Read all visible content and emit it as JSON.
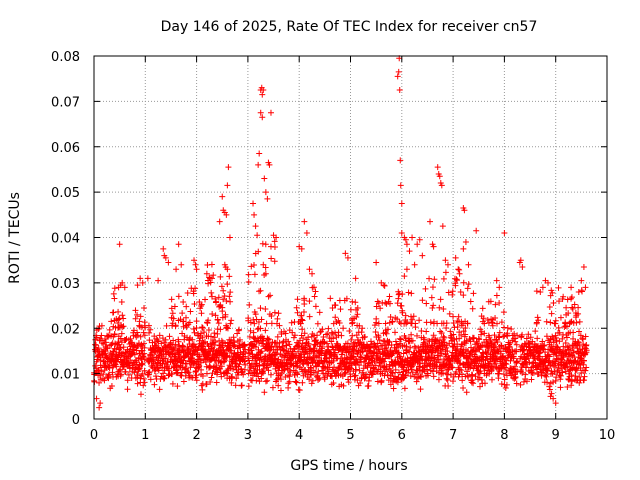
{
  "chart_data": {
    "type": "scatter",
    "title": "Day 146 of 2025, Rate Of TEC Index for receiver cn57",
    "xlabel": "GPS time / hours",
    "ylabel": "ROTI / TECUs",
    "xlim": [
      0,
      10
    ],
    "ylim": [
      0,
      0.08
    ],
    "xticks": [
      0,
      1,
      2,
      3,
      4,
      5,
      6,
      7,
      8,
      9,
      10
    ],
    "yticks": [
      0,
      0.01,
      0.02,
      0.03,
      0.04,
      0.05,
      0.06,
      0.07,
      0.08
    ],
    "xtick_labels": [
      "0",
      "1",
      "2",
      "3",
      "4",
      "5",
      "6",
      "7",
      "8",
      "9",
      "10"
    ],
    "ytick_labels": [
      "0",
      "0.01",
      "0.02",
      "0.03",
      "0.04",
      "0.05",
      "0.06",
      "0.07",
      "0.08"
    ],
    "grid": true,
    "marker": "plus",
    "series": [
      {
        "name": "ROTI",
        "color": "#ff0000",
        "background": {
          "x_start": 0.0,
          "x_end": 9.6,
          "step": 0.01,
          "band_low": 0.006,
          "band_high": 0.021,
          "per_step": 3,
          "gaps": [
            [
              1.0,
              1.05
            ],
            [
              2.95,
              3.0
            ],
            [
              8.25,
              8.3
            ]
          ]
        },
        "points": [
          [
            0.5,
            0.0385
          ],
          [
            0.48,
            0.029
          ],
          [
            0.52,
            0.0295
          ],
          [
            0.55,
            0.03
          ],
          [
            0.6,
            0.029
          ],
          [
            0.1,
            0.0025
          ],
          [
            0.12,
            0.0035
          ],
          [
            0.05,
            0.0045
          ],
          [
            0.85,
            0.0295
          ],
          [
            0.9,
            0.031
          ],
          [
            0.95,
            0.03
          ],
          [
            1.05,
            0.031
          ],
          [
            1.25,
            0.0305
          ],
          [
            1.35,
            0.0375
          ],
          [
            1.37,
            0.036
          ],
          [
            1.4,
            0.0355
          ],
          [
            1.45,
            0.0345
          ],
          [
            1.6,
            0.033
          ],
          [
            1.65,
            0.0385
          ],
          [
            1.7,
            0.034
          ],
          [
            1.95,
            0.035
          ],
          [
            1.98,
            0.034
          ],
          [
            2.0,
            0.033
          ],
          [
            2.2,
            0.032
          ],
          [
            2.3,
            0.031
          ],
          [
            2.45,
            0.0435
          ],
          [
            2.5,
            0.049
          ],
          [
            2.52,
            0.046
          ],
          [
            2.55,
            0.0455
          ],
          [
            2.58,
            0.045
          ],
          [
            2.6,
            0.0515
          ],
          [
            2.62,
            0.0555
          ],
          [
            2.65,
            0.04
          ],
          [
            2.55,
            0.034
          ],
          [
            2.6,
            0.033
          ],
          [
            3.1,
            0.0475
          ],
          [
            3.12,
            0.045
          ],
          [
            3.15,
            0.0425
          ],
          [
            3.18,
            0.0405
          ],
          [
            3.2,
            0.056
          ],
          [
            3.22,
            0.0585
          ],
          [
            3.25,
            0.0725
          ],
          [
            3.27,
            0.073
          ],
          [
            3.28,
            0.0715
          ],
          [
            3.3,
            0.0725
          ],
          [
            3.25,
            0.0675
          ],
          [
            3.28,
            0.0665
          ],
          [
            3.32,
            0.053
          ],
          [
            3.35,
            0.05
          ],
          [
            3.38,
            0.0485
          ],
          [
            3.4,
            0.0565
          ],
          [
            3.42,
            0.056
          ],
          [
            3.45,
            0.0675
          ],
          [
            3.3,
            0.034
          ],
          [
            3.35,
            0.032
          ],
          [
            3.5,
            0.0405
          ],
          [
            3.55,
            0.04
          ],
          [
            3.45,
            0.038
          ],
          [
            4.1,
            0.0435
          ],
          [
            4.15,
            0.041
          ],
          [
            4.2,
            0.033
          ],
          [
            4.25,
            0.032
          ],
          [
            4.0,
            0.038
          ],
          [
            4.05,
            0.0375
          ],
          [
            4.3,
            0.027
          ],
          [
            4.4,
            0.0235
          ],
          [
            4.9,
            0.0365
          ],
          [
            4.95,
            0.0355
          ],
          [
            5.1,
            0.031
          ],
          [
            5.5,
            0.0345
          ],
          [
            5.6,
            0.03
          ],
          [
            5.65,
            0.0295
          ],
          [
            5.95,
            0.0795
          ],
          [
            5.92,
            0.0755
          ],
          [
            5.94,
            0.0765
          ],
          [
            5.96,
            0.0725
          ],
          [
            5.97,
            0.057
          ],
          [
            5.98,
            0.0515
          ],
          [
            6.0,
            0.0475
          ],
          [
            6.0,
            0.041
          ],
          [
            6.05,
            0.04
          ],
          [
            6.08,
            0.0395
          ],
          [
            6.1,
            0.0385
          ],
          [
            6.15,
            0.037
          ],
          [
            6.2,
            0.04
          ],
          [
            6.25,
            0.034
          ],
          [
            6.3,
            0.0385
          ],
          [
            6.35,
            0.0395
          ],
          [
            6.4,
            0.036
          ],
          [
            6.05,
            0.0315
          ],
          [
            6.1,
            0.033
          ],
          [
            6.55,
            0.0435
          ],
          [
            6.6,
            0.0385
          ],
          [
            6.62,
            0.038
          ],
          [
            6.7,
            0.0555
          ],
          [
            6.72,
            0.054
          ],
          [
            6.74,
            0.0535
          ],
          [
            6.76,
            0.052
          ],
          [
            6.78,
            0.0515
          ],
          [
            6.8,
            0.0425
          ],
          [
            6.85,
            0.035
          ],
          [
            6.9,
            0.034
          ],
          [
            7.05,
            0.0355
          ],
          [
            7.1,
            0.033
          ],
          [
            7.2,
            0.0465
          ],
          [
            7.22,
            0.046
          ],
          [
            7.25,
            0.039
          ],
          [
            7.2,
            0.0375
          ],
          [
            7.3,
            0.034
          ],
          [
            7.45,
            0.0415
          ],
          [
            7.85,
            0.0305
          ],
          [
            7.9,
            0.029
          ],
          [
            8.0,
            0.041
          ],
          [
            8.3,
            0.0345
          ],
          [
            8.32,
            0.035
          ],
          [
            8.35,
            0.0335
          ],
          [
            8.7,
            0.028
          ],
          [
            8.75,
            0.029
          ],
          [
            8.8,
            0.0305
          ],
          [
            8.85,
            0.03
          ],
          [
            9.0,
            0.0035
          ],
          [
            8.95,
            0.0045
          ],
          [
            8.9,
            0.005
          ],
          [
            9.3,
            0.029
          ],
          [
            9.45,
            0.028
          ],
          [
            9.55,
            0.0335
          ],
          [
            9.5,
            0.0305
          ],
          [
            9.58,
            0.029
          ]
        ],
        "clusters": [
          {
            "x0": 0.3,
            "x1": 0.6,
            "y0": 0.02,
            "y1": 0.029,
            "n": 22
          },
          {
            "x0": 0.8,
            "x1": 1.0,
            "y0": 0.02,
            "y1": 0.028,
            "n": 12
          },
          {
            "x0": 1.5,
            "x1": 2.2,
            "y0": 0.02,
            "y1": 0.03,
            "n": 40
          },
          {
            "x0": 2.2,
            "x1": 2.7,
            "y0": 0.021,
            "y1": 0.035,
            "n": 45
          },
          {
            "x0": 3.0,
            "x1": 3.6,
            "y0": 0.021,
            "y1": 0.04,
            "n": 40
          },
          {
            "x0": 3.9,
            "x1": 4.4,
            "y0": 0.021,
            "y1": 0.03,
            "n": 22
          },
          {
            "x0": 4.6,
            "x1": 5.2,
            "y0": 0.021,
            "y1": 0.028,
            "n": 25
          },
          {
            "x0": 5.5,
            "x1": 6.5,
            "y0": 0.021,
            "y1": 0.03,
            "n": 50
          },
          {
            "x0": 6.5,
            "x1": 7.4,
            "y0": 0.021,
            "y1": 0.033,
            "n": 45
          },
          {
            "x0": 7.5,
            "x1": 8.0,
            "y0": 0.021,
            "y1": 0.028,
            "n": 20
          },
          {
            "x0": 8.6,
            "x1": 9.6,
            "y0": 0.021,
            "y1": 0.029,
            "n": 45
          }
        ]
      }
    ]
  }
}
